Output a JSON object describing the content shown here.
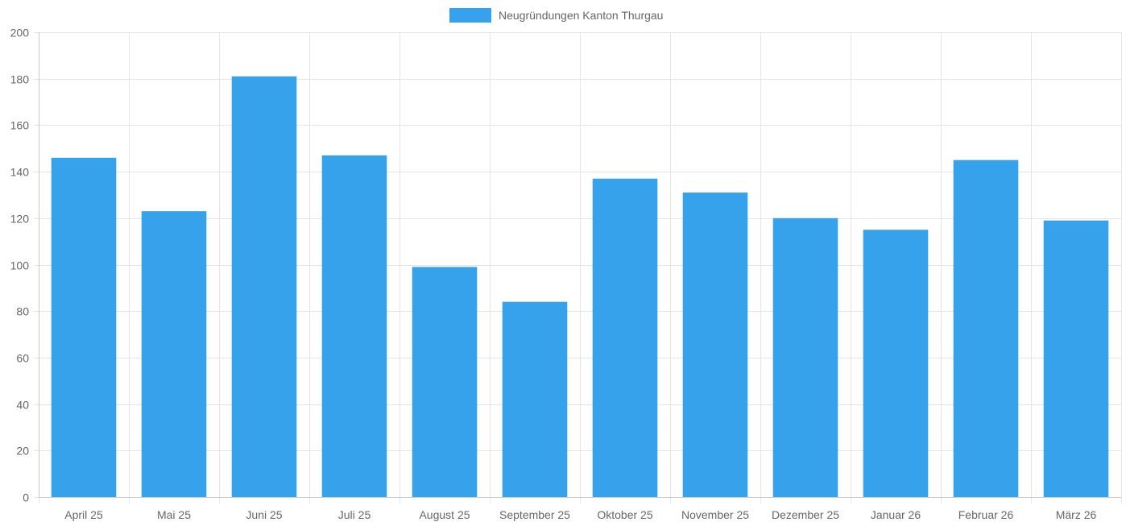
{
  "chart_data": {
    "type": "bar",
    "title": "",
    "xlabel": "",
    "ylabel": "",
    "categories": [
      "April 25",
      "Mai 25",
      "Juni 25",
      "Juli 25",
      "August 25",
      "September 25",
      "Oktober 25",
      "November 25",
      "Dezember 25",
      "Januar 26",
      "Februar 26",
      "März 26"
    ],
    "series": [
      {
        "name": "Neugründungen Kanton Thurgau",
        "values": [
          146,
          123,
          181,
          147,
          99,
          84,
          137,
          131,
          120,
          115,
          145,
          119
        ],
        "color": "#36a2eb"
      }
    ],
    "ylim": [
      0,
      200
    ],
    "yticks": [
      0,
      20,
      40,
      60,
      80,
      100,
      120,
      140,
      160,
      180,
      200
    ],
    "grid": true,
    "legend": "top-center"
  },
  "colors": {
    "bar": "#36a2eb",
    "grid": "#e5e5e5",
    "axis": "#c8c8c8",
    "text": "#666666"
  }
}
